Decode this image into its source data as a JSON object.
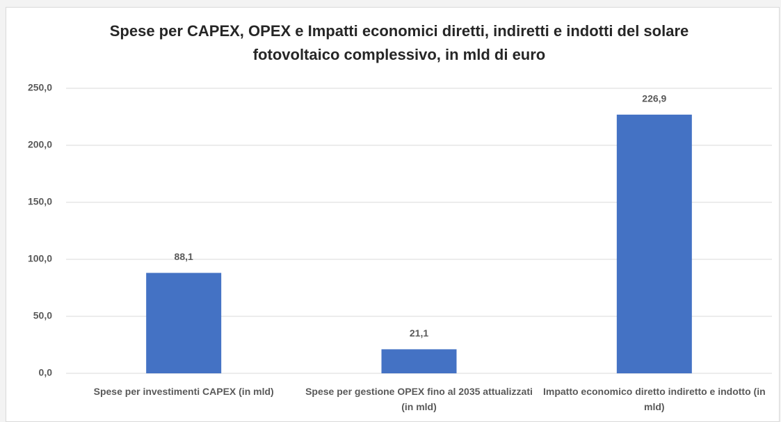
{
  "chart_data": {
    "type": "bar",
    "title": "Spese per CAPEX, OPEX e Impatti economici diretti, indiretti e indotti del solare fotovoltaico complessivo, in mld di euro",
    "categories": [
      "Spese per investimenti CAPEX (in mld)",
      "Spese per  gestione OPEX  fino al 2035 attualizzati (in mld)",
      "Impatto economico diretto  indiretto e indotto (in mld)"
    ],
    "values": [
      88.1,
      21.1,
      226.9
    ],
    "value_labels": [
      "88,1",
      "21,1",
      "226,9"
    ],
    "color": "#4472c4",
    "ylim": [
      0,
      250
    ],
    "yticks": [
      {
        "value": 0,
        "label": "0,0"
      },
      {
        "value": 50,
        "label": "50,0"
      },
      {
        "value": 100,
        "label": "100,0"
      },
      {
        "value": 150,
        "label": "150,0"
      },
      {
        "value": 200,
        "label": "200,0"
      },
      {
        "value": 250,
        "label": "250,0"
      }
    ],
    "grid": true
  }
}
